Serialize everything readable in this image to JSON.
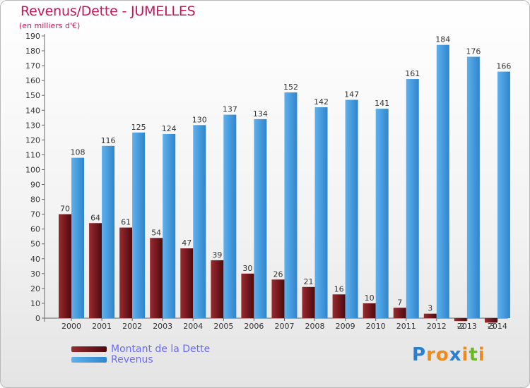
{
  "chart_data": {
    "type": "bar",
    "title": "Revenus/Dette - JUMELLES",
    "subtitle": "(en milliers d'€)",
    "categories": [
      "2000",
      "2001",
      "2002",
      "2003",
      "2004",
      "2005",
      "2006",
      "2007",
      "2008",
      "2009",
      "2010",
      "2011",
      "2012",
      "2013",
      "2014"
    ],
    "series": [
      {
        "name": "Montant de la Dette",
        "color": "#7a1a1f",
        "values": [
          70,
          64,
          61,
          54,
          47,
          39,
          30,
          26,
          21,
          16,
          10,
          7,
          3,
          -2,
          -3
        ]
      },
      {
        "name": "Revenus",
        "color": "#4a9fe0",
        "values": [
          108,
          116,
          125,
          124,
          130,
          137,
          134,
          152,
          142,
          147,
          141,
          161,
          184,
          176,
          166
        ]
      }
    ],
    "yticks": [
      0,
      10,
      20,
      30,
      40,
      50,
      60,
      70,
      80,
      90,
      100,
      110,
      120,
      130,
      140,
      150,
      160,
      170,
      180,
      190
    ],
    "ylim": [
      0,
      190
    ],
    "grid": false,
    "legend_position": "bottom-left"
  },
  "logo": {
    "letters": [
      "P",
      "r",
      "o",
      "x",
      "i",
      "t",
      "i"
    ],
    "colors": [
      "#2a7fd4",
      "#f08a1c",
      "#f08a1c",
      "#2a7fd4",
      "#f08a1c",
      "#6fb52c",
      "#f08a1c"
    ]
  }
}
